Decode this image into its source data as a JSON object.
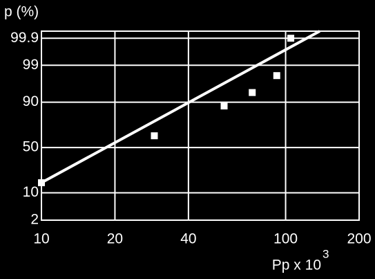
{
  "chart_data": {
    "type": "scatter",
    "ylabel": "p (%)",
    "xlabel": "Pp x 10",
    "xlabel_exponent": "3",
    "xscale": "log",
    "yscale": "probit",
    "xlim": [
      10,
      200
    ],
    "ylim": [
      2,
      99.95
    ],
    "xticks": [
      10,
      20,
      40,
      100,
      200
    ],
    "yticks": [
      2,
      10,
      50,
      90,
      99,
      99.9
    ],
    "grid": true,
    "background": "#000000",
    "color": "#ffffff",
    "series": [
      {
        "x": [
          10,
          29,
          56,
          73,
          92,
          105
        ],
        "values": [
          16,
          63,
          88,
          94,
          97.9,
          99.9
        ],
        "color": "#ffffff"
      }
    ],
    "fit_line": {
      "x": [
        10,
        138
      ],
      "values": [
        16,
        99.95
      ],
      "color": "#ffffff"
    }
  }
}
